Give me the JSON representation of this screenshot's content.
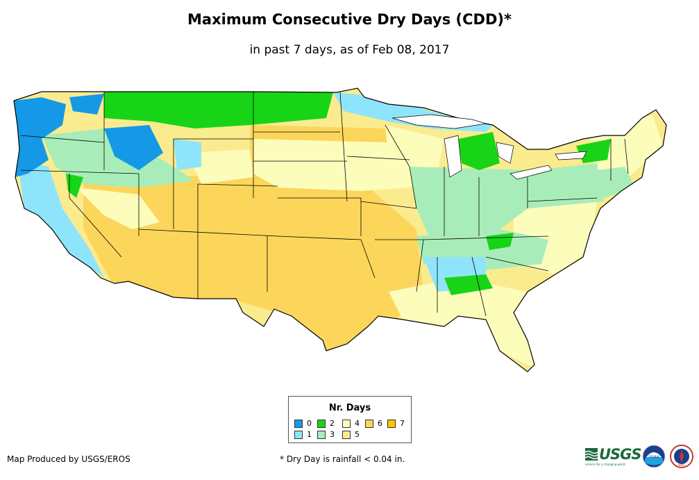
{
  "title": "Maximum Consecutive Dry Days (CDD)*",
  "subtitle": "in past 7 days, as of Feb 08, 2017",
  "legend": {
    "title": "Nr. Days",
    "items": [
      {
        "label": "0",
        "color": "#1599e6"
      },
      {
        "label": "1",
        "color": "#8ee5fb"
      },
      {
        "label": "2",
        "color": "#17d417"
      },
      {
        "label": "3",
        "color": "#a8edb9"
      },
      {
        "label": "4",
        "color": "#fcfcbb"
      },
      {
        "label": "5",
        "color": "#fbeb8f"
      },
      {
        "label": "6",
        "color": "#fbd65b"
      },
      {
        "label": "7",
        "color": "#fbc502"
      }
    ]
  },
  "footer": {
    "producer": "Map Produced by USGS/EROS",
    "note": "* Dry Day is rainfall < 0.04 in."
  },
  "logos": {
    "usgs_word": "USGS",
    "usgs_tagline": "science for a changing world",
    "noaa_text": "noaa",
    "nws_text": "NWS"
  }
}
